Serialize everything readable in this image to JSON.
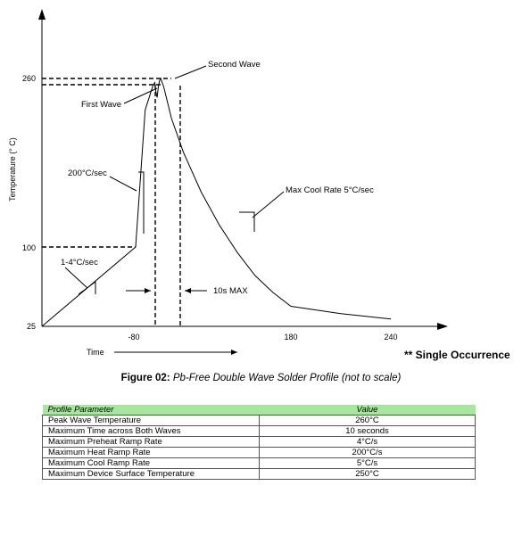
{
  "chart_data": {
    "type": "line",
    "xlabel": "Time",
    "ylabel": "Temperature (° C)",
    "x_ticks": [
      "-80",
      "180",
      "240"
    ],
    "y_ticks": [
      "25",
      "100",
      "260"
    ],
    "series": [
      {
        "x": [
          -170,
          -80,
          -64,
          -54,
          -51,
          -48,
          -46,
          -44,
          -42,
          -40,
          -38,
          -33,
          -20,
          0,
          30,
          60,
          90,
          120,
          150,
          180,
          210,
          240
        ],
        "y": [
          25,
          100,
          230,
          248,
          253,
          256,
          247,
          242,
          252,
          258,
          260,
          252,
          222,
          190,
          152,
          121,
          95,
          73,
          57,
          44,
          37,
          32
        ]
      }
    ],
    "annotations": {
      "second_wave": "Second Wave",
      "first_wave": "First Wave",
      "heat_rate": "200°C/sec",
      "cool_rate": "Max Cool Rate 5°C/sec",
      "preheat_rate": "1-4°C/sec",
      "wave_time": "10s MAX"
    }
  },
  "note": "** Single Occurrence",
  "caption": {
    "number": "Figure 02:",
    "description": "Pb-Free Double Wave Solder Profile (not to scale)"
  },
  "table": {
    "headers": [
      "Profile Parameter",
      "Value"
    ],
    "rows": [
      [
        "Peak Wave Temperature",
        "260°C"
      ],
      [
        "Maximum Time across Both Waves",
        "10 seconds"
      ],
      [
        "Maximum Preheat Ramp Rate",
        "4°C/s"
      ],
      [
        "Maximum Heat Ramp Rate",
        "200°C/s"
      ],
      [
        "Maximum Cool Ramp Rate",
        "5°C/s"
      ],
      [
        "Maximum Device Surface Temperature",
        "250°C"
      ]
    ]
  }
}
